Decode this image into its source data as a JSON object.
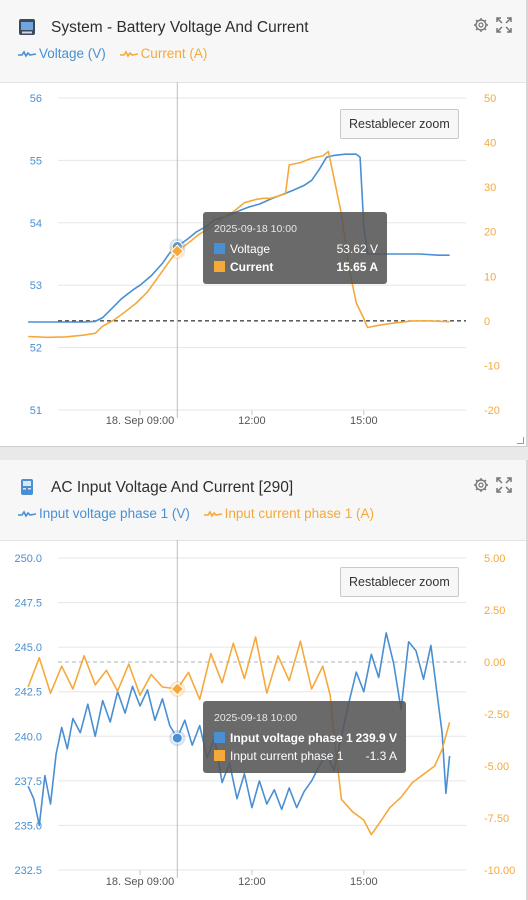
{
  "panels": [
    {
      "title": "System - Battery Voltage And Current",
      "legend": [
        {
          "label": "Voltage (V)",
          "color": "#4a8fd2"
        },
        {
          "label": "Current (A)",
          "color": "#f5a93b"
        }
      ],
      "reset_zoom_label": "Restablecer zoom",
      "tooltip": {
        "time": "2025-09-18 10:00",
        "rows": [
          {
            "label": "Voltage",
            "value": "53.62 V",
            "color": "#4a8fd2",
            "bold": false
          },
          {
            "label": "Current",
            "value": "15.65 A",
            "color": "#f5a93b",
            "bold": true
          }
        ]
      }
    },
    {
      "title": "AC Input Voltage And Current [290]",
      "legend": [
        {
          "label": "Input voltage phase 1 (V)",
          "color": "#4a8fd2"
        },
        {
          "label": "Input current phase 1 (A)",
          "color": "#f5a93b"
        }
      ],
      "reset_zoom_label": "Restablecer zoom",
      "tooltip": {
        "time": "2025-09-18 10:00",
        "rows": [
          {
            "label": "Input voltage phase 1",
            "value": "239.9 V",
            "color": "#4a8fd2",
            "bold": true
          },
          {
            "label": "Input current phase 1",
            "value": "-1.3 A",
            "color": "#f5a93b",
            "bold": false
          }
        ]
      }
    }
  ],
  "chart_data": [
    {
      "type": "line",
      "title": "System - Battery Voltage And Current",
      "x_ticks": [
        "18. Sep 09:00",
        "12:00",
        "15:00"
      ],
      "y_left": {
        "ticks": [
          "56",
          "55",
          "54",
          "53",
          "52",
          "51"
        ],
        "range": [
          51,
          56
        ],
        "color": "#4a8fd2"
      },
      "y_right": {
        "ticks": [
          "50",
          "40",
          "30",
          "20",
          "10",
          "0",
          "-10",
          "-20"
        ],
        "range": [
          -20,
          50
        ],
        "color": "#f5a93b"
      },
      "zero_line": "dashed",
      "crosshair_hour": 10,
      "series": [
        {
          "name": "Voltage",
          "axis": "left",
          "color": "#4a8fd2",
          "points": [
            [
              6.0,
              52.41
            ],
            [
              6.5,
              52.41
            ],
            [
              7.0,
              52.41
            ],
            [
              7.5,
              52.41
            ],
            [
              7.8,
              52.42
            ],
            [
              8.0,
              52.48
            ],
            [
              8.2,
              52.6
            ],
            [
              8.5,
              52.78
            ],
            [
              8.8,
              52.92
            ],
            [
              9.0,
              53.0
            ],
            [
              9.3,
              53.15
            ],
            [
              9.6,
              53.35
            ],
            [
              9.8,
              53.52
            ],
            [
              10.0,
              53.62
            ],
            [
              10.3,
              53.75
            ],
            [
              10.5,
              53.85
            ],
            [
              10.8,
              53.95
            ],
            [
              11.0,
              54.05
            ],
            [
              11.3,
              54.1
            ],
            [
              11.6,
              54.18
            ],
            [
              11.9,
              54.25
            ],
            [
              12.2,
              54.3
            ],
            [
              12.5,
              54.38
            ],
            [
              12.8,
              54.45
            ],
            [
              13.1,
              54.52
            ],
            [
              13.4,
              54.6
            ],
            [
              13.6,
              54.68
            ],
            [
              13.8,
              54.85
            ],
            [
              14.0,
              55.05
            ],
            [
              14.2,
              55.08
            ],
            [
              14.5,
              55.1
            ],
            [
              14.8,
              55.1
            ],
            [
              14.9,
              55.05
            ],
            [
              15.0,
              53.95
            ],
            [
              15.1,
              53.5
            ],
            [
              15.5,
              53.5
            ],
            [
              16.0,
              53.5
            ],
            [
              16.5,
              53.5
            ],
            [
              17.0,
              53.48
            ],
            [
              17.3,
              53.48
            ]
          ]
        },
        {
          "name": "Current",
          "axis": "right",
          "color": "#f5a93b",
          "points": [
            [
              6.0,
              -3.5
            ],
            [
              6.5,
              -3.7
            ],
            [
              7.0,
              -3.6
            ],
            [
              7.5,
              -3.2
            ],
            [
              7.8,
              -2.8
            ],
            [
              8.0,
              -1.2
            ],
            [
              8.3,
              0.2
            ],
            [
              8.6,
              2.0
            ],
            [
              8.9,
              4.0
            ],
            [
              9.2,
              6.5
            ],
            [
              9.5,
              10.0
            ],
            [
              9.8,
              13.5
            ],
            [
              10.0,
              15.65
            ],
            [
              10.3,
              17.5
            ],
            [
              10.6,
              19.5
            ],
            [
              10.9,
              21.0
            ],
            [
              11.2,
              23.0
            ],
            [
              11.5,
              24.5
            ],
            [
              11.8,
              26.5
            ],
            [
              12.1,
              27.2
            ],
            [
              12.3,
              27.5
            ],
            [
              12.5,
              27.5
            ],
            [
              12.7,
              28.0
            ],
            [
              12.9,
              28.5
            ],
            [
              13.0,
              35.0
            ],
            [
              13.3,
              35.5
            ],
            [
              13.6,
              36.5
            ],
            [
              13.9,
              37.0
            ],
            [
              14.05,
              38.0
            ],
            [
              14.2,
              32.0
            ],
            [
              14.4,
              24.0
            ],
            [
              14.6,
              12.0
            ],
            [
              14.8,
              4.0
            ],
            [
              15.0,
              0.5
            ],
            [
              15.1,
              -1.5
            ],
            [
              15.4,
              -1.0
            ],
            [
              15.8,
              -0.5
            ],
            [
              16.3,
              0.0
            ],
            [
              16.8,
              0.0
            ],
            [
              17.3,
              -0.2
            ]
          ]
        }
      ]
    },
    {
      "type": "line",
      "title": "AC Input Voltage And Current [290]",
      "x_ticks": [
        "18. Sep 09:00",
        "12:00",
        "15:00"
      ],
      "y_left": {
        "ticks": [
          "250.0",
          "247.5",
          "245.0",
          "242.5",
          "240.0",
          "237.5",
          "235.0",
          "232.5"
        ],
        "range": [
          232.5,
          250.0
        ],
        "color": "#4a8fd2"
      },
      "y_right": {
        "ticks": [
          "5.00",
          "2.50",
          "0.00",
          "-2.50",
          "-5.00",
          "-7.50",
          "-10.00"
        ],
        "range": [
          -10,
          5
        ],
        "color": "#f5a93b"
      },
      "zero_line": "dashed",
      "crosshair_hour": 10,
      "series": [
        {
          "name": "Input voltage phase 1",
          "axis": "left",
          "color": "#4a8fd2",
          "points": [
            [
              6.0,
              237.2
            ],
            [
              6.15,
              236.5
            ],
            [
              6.3,
              235.0
            ],
            [
              6.45,
              237.8
            ],
            [
              6.6,
              236.2
            ],
            [
              6.75,
              239.0
            ],
            [
              6.9,
              240.5
            ],
            [
              7.05,
              239.3
            ],
            [
              7.2,
              241.0
            ],
            [
              7.4,
              240.2
            ],
            [
              7.6,
              241.8
            ],
            [
              7.8,
              240.0
            ],
            [
              8.0,
              242.0
            ],
            [
              8.2,
              240.8
            ],
            [
              8.4,
              242.5
            ],
            [
              8.6,
              241.3
            ],
            [
              8.8,
              242.8
            ],
            [
              9.0,
              241.7
            ],
            [
              9.2,
              242.6
            ],
            [
              9.4,
              240.9
            ],
            [
              9.6,
              242.1
            ],
            [
              9.8,
              240.6
            ],
            [
              10.0,
              239.9
            ],
            [
              10.2,
              240.9
            ],
            [
              10.4,
              239.5
            ],
            [
              10.6,
              240.6
            ],
            [
              10.8,
              238.8
            ],
            [
              11.0,
              239.9
            ],
            [
              11.2,
              237.4
            ],
            [
              11.4,
              238.5
            ],
            [
              11.6,
              236.5
            ],
            [
              11.8,
              237.9
            ],
            [
              12.0,
              236.0
            ],
            [
              12.2,
              237.5
            ],
            [
              12.4,
              236.2
            ],
            [
              12.6,
              237.0
            ],
            [
              12.8,
              235.9
            ],
            [
              13.0,
              237.1
            ],
            [
              13.2,
              236.0
            ],
            [
              13.4,
              236.9
            ],
            [
              13.6,
              237.5
            ],
            [
              13.8,
              238.3
            ],
            [
              14.0,
              239.0
            ],
            [
              14.2,
              238.1
            ],
            [
              14.4,
              240.0
            ],
            [
              14.6,
              241.9
            ],
            [
              14.8,
              243.6
            ],
            [
              15.0,
              242.5
            ],
            [
              15.2,
              244.6
            ],
            [
              15.4,
              243.3
            ],
            [
              15.6,
              245.8
            ],
            [
              15.8,
              244.1
            ],
            [
              16.0,
              241.5
            ],
            [
              16.2,
              245.3
            ],
            [
              16.4,
              244.8
            ],
            [
              16.6,
              243.2
            ],
            [
              16.8,
              245.1
            ],
            [
              17.0,
              241.8
            ],
            [
              17.1,
              240.2
            ],
            [
              17.2,
              236.8
            ],
            [
              17.3,
              238.9
            ]
          ]
        },
        {
          "name": "Input current phase 1",
          "axis": "right",
          "color": "#f5a93b",
          "points": [
            [
              6.0,
              -1.2
            ],
            [
              6.3,
              0.2
            ],
            [
              6.6,
              -1.5
            ],
            [
              6.9,
              -0.2
            ],
            [
              7.2,
              -1.3
            ],
            [
              7.5,
              0.3
            ],
            [
              7.8,
              -1.1
            ],
            [
              8.1,
              -0.4
            ],
            [
              8.4,
              -1.4
            ],
            [
              8.7,
              -0.1
            ],
            [
              9.0,
              -1.6
            ],
            [
              9.3,
              -0.6
            ],
            [
              9.6,
              -1.2
            ],
            [
              10.0,
              -1.3
            ],
            [
              10.3,
              -0.5
            ],
            [
              10.6,
              -1.8
            ],
            [
              10.9,
              0.4
            ],
            [
              11.2,
              -1.0
            ],
            [
              11.5,
              0.9
            ],
            [
              11.8,
              -0.8
            ],
            [
              12.1,
              1.2
            ],
            [
              12.4,
              -1.5
            ],
            [
              12.7,
              0.3
            ],
            [
              13.0,
              -0.9
            ],
            [
              13.3,
              1.0
            ],
            [
              13.6,
              -1.3
            ],
            [
              13.9,
              -0.2
            ],
            [
              14.1,
              -1.6
            ],
            [
              14.2,
              -3.5
            ],
            [
              14.4,
              -6.6
            ],
            [
              14.7,
              -7.2
            ],
            [
              15.0,
              -7.6
            ],
            [
              15.2,
              -8.3
            ],
            [
              15.4,
              -7.8
            ],
            [
              15.7,
              -7.0
            ],
            [
              16.0,
              -6.5
            ],
            [
              16.3,
              -5.8
            ],
            [
              16.6,
              -5.4
            ],
            [
              16.9,
              -5.0
            ],
            [
              17.1,
              -4.2
            ],
            [
              17.3,
              -2.9
            ]
          ]
        }
      ]
    }
  ]
}
